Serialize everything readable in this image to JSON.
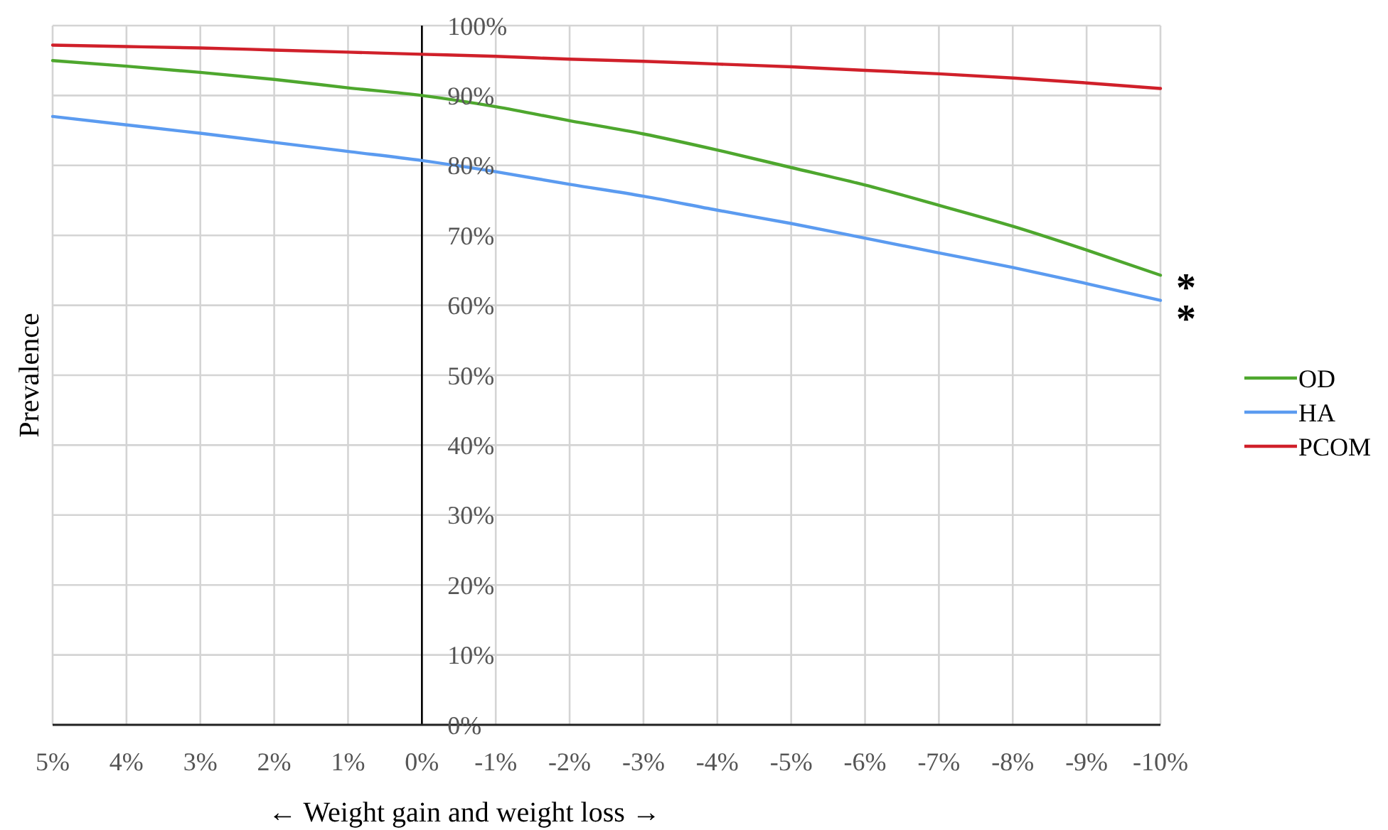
{
  "chart_data": {
    "type": "line",
    "xlabel": "← Weight gain and weight loss →",
    "ylabel": "Prevalence",
    "x": [
      5,
      4,
      3,
      2,
      1,
      0,
      -1,
      -2,
      -3,
      -4,
      -5,
      -6,
      -7,
      -8,
      -9,
      -10
    ],
    "series": [
      {
        "name": "OD",
        "color": "#4ea72e",
        "values": [
          95.0,
          94.2,
          93.3,
          92.3,
          91.1,
          90.0,
          88.4,
          86.4,
          84.5,
          82.2,
          79.7,
          77.2,
          74.3,
          71.3,
          67.9,
          64.3
        ]
      },
      {
        "name": "HA",
        "color": "#5b9bf0",
        "values": [
          87.0,
          85.8,
          84.6,
          83.3,
          82.0,
          80.7,
          79.1,
          77.3,
          75.6,
          73.6,
          71.7,
          69.6,
          67.5,
          65.4,
          63.1,
          60.7
        ]
      },
      {
        "name": "PCOM",
        "color": "#d0202a",
        "values": [
          97.2,
          97.0,
          96.8,
          96.5,
          96.2,
          95.9,
          95.6,
          95.2,
          94.9,
          94.5,
          94.1,
          93.6,
          93.1,
          92.5,
          91.8,
          91.0
        ]
      }
    ],
    "xlim": [
      5,
      -10
    ],
    "xticks": [
      {
        "value": 5,
        "label": "5%"
      },
      {
        "value": 4,
        "label": "4%"
      },
      {
        "value": 3,
        "label": "3%"
      },
      {
        "value": 2,
        "label": "2%"
      },
      {
        "value": 1,
        "label": "1%"
      },
      {
        "value": 0,
        "label": "0%"
      },
      {
        "value": -1,
        "label": "-1%"
      },
      {
        "value": -2,
        "label": "-2%"
      },
      {
        "value": -3,
        "label": "-3%"
      },
      {
        "value": -4,
        "label": "-4%"
      },
      {
        "value": -5,
        "label": "-5%"
      },
      {
        "value": -6,
        "label": "-6%"
      },
      {
        "value": -7,
        "label": "-7%"
      },
      {
        "value": -8,
        "label": "-8%"
      },
      {
        "value": -9,
        "label": "-9%"
      },
      {
        "value": -10,
        "label": "-10%"
      }
    ],
    "ylim": [
      0,
      100
    ],
    "yticks": [
      {
        "value": 0,
        "label": "0%"
      },
      {
        "value": 10,
        "label": "10%"
      },
      {
        "value": 20,
        "label": "20%"
      },
      {
        "value": 30,
        "label": "30%"
      },
      {
        "value": 40,
        "label": "40%"
      },
      {
        "value": 50,
        "label": "50%"
      },
      {
        "value": 60,
        "label": "60%"
      },
      {
        "value": 70,
        "label": "70%"
      },
      {
        "value": 80,
        "label": "80%"
      },
      {
        "value": 90,
        "label": "90%"
      },
      {
        "value": 100,
        "label": "100%"
      }
    ],
    "annotations": [
      {
        "text": "*",
        "x": -10,
        "y": 64.3
      },
      {
        "text": "*",
        "x": -10,
        "y": 60.7
      }
    ],
    "grid": true,
    "legend": "right",
    "marker": "none",
    "line_style": "solid"
  }
}
